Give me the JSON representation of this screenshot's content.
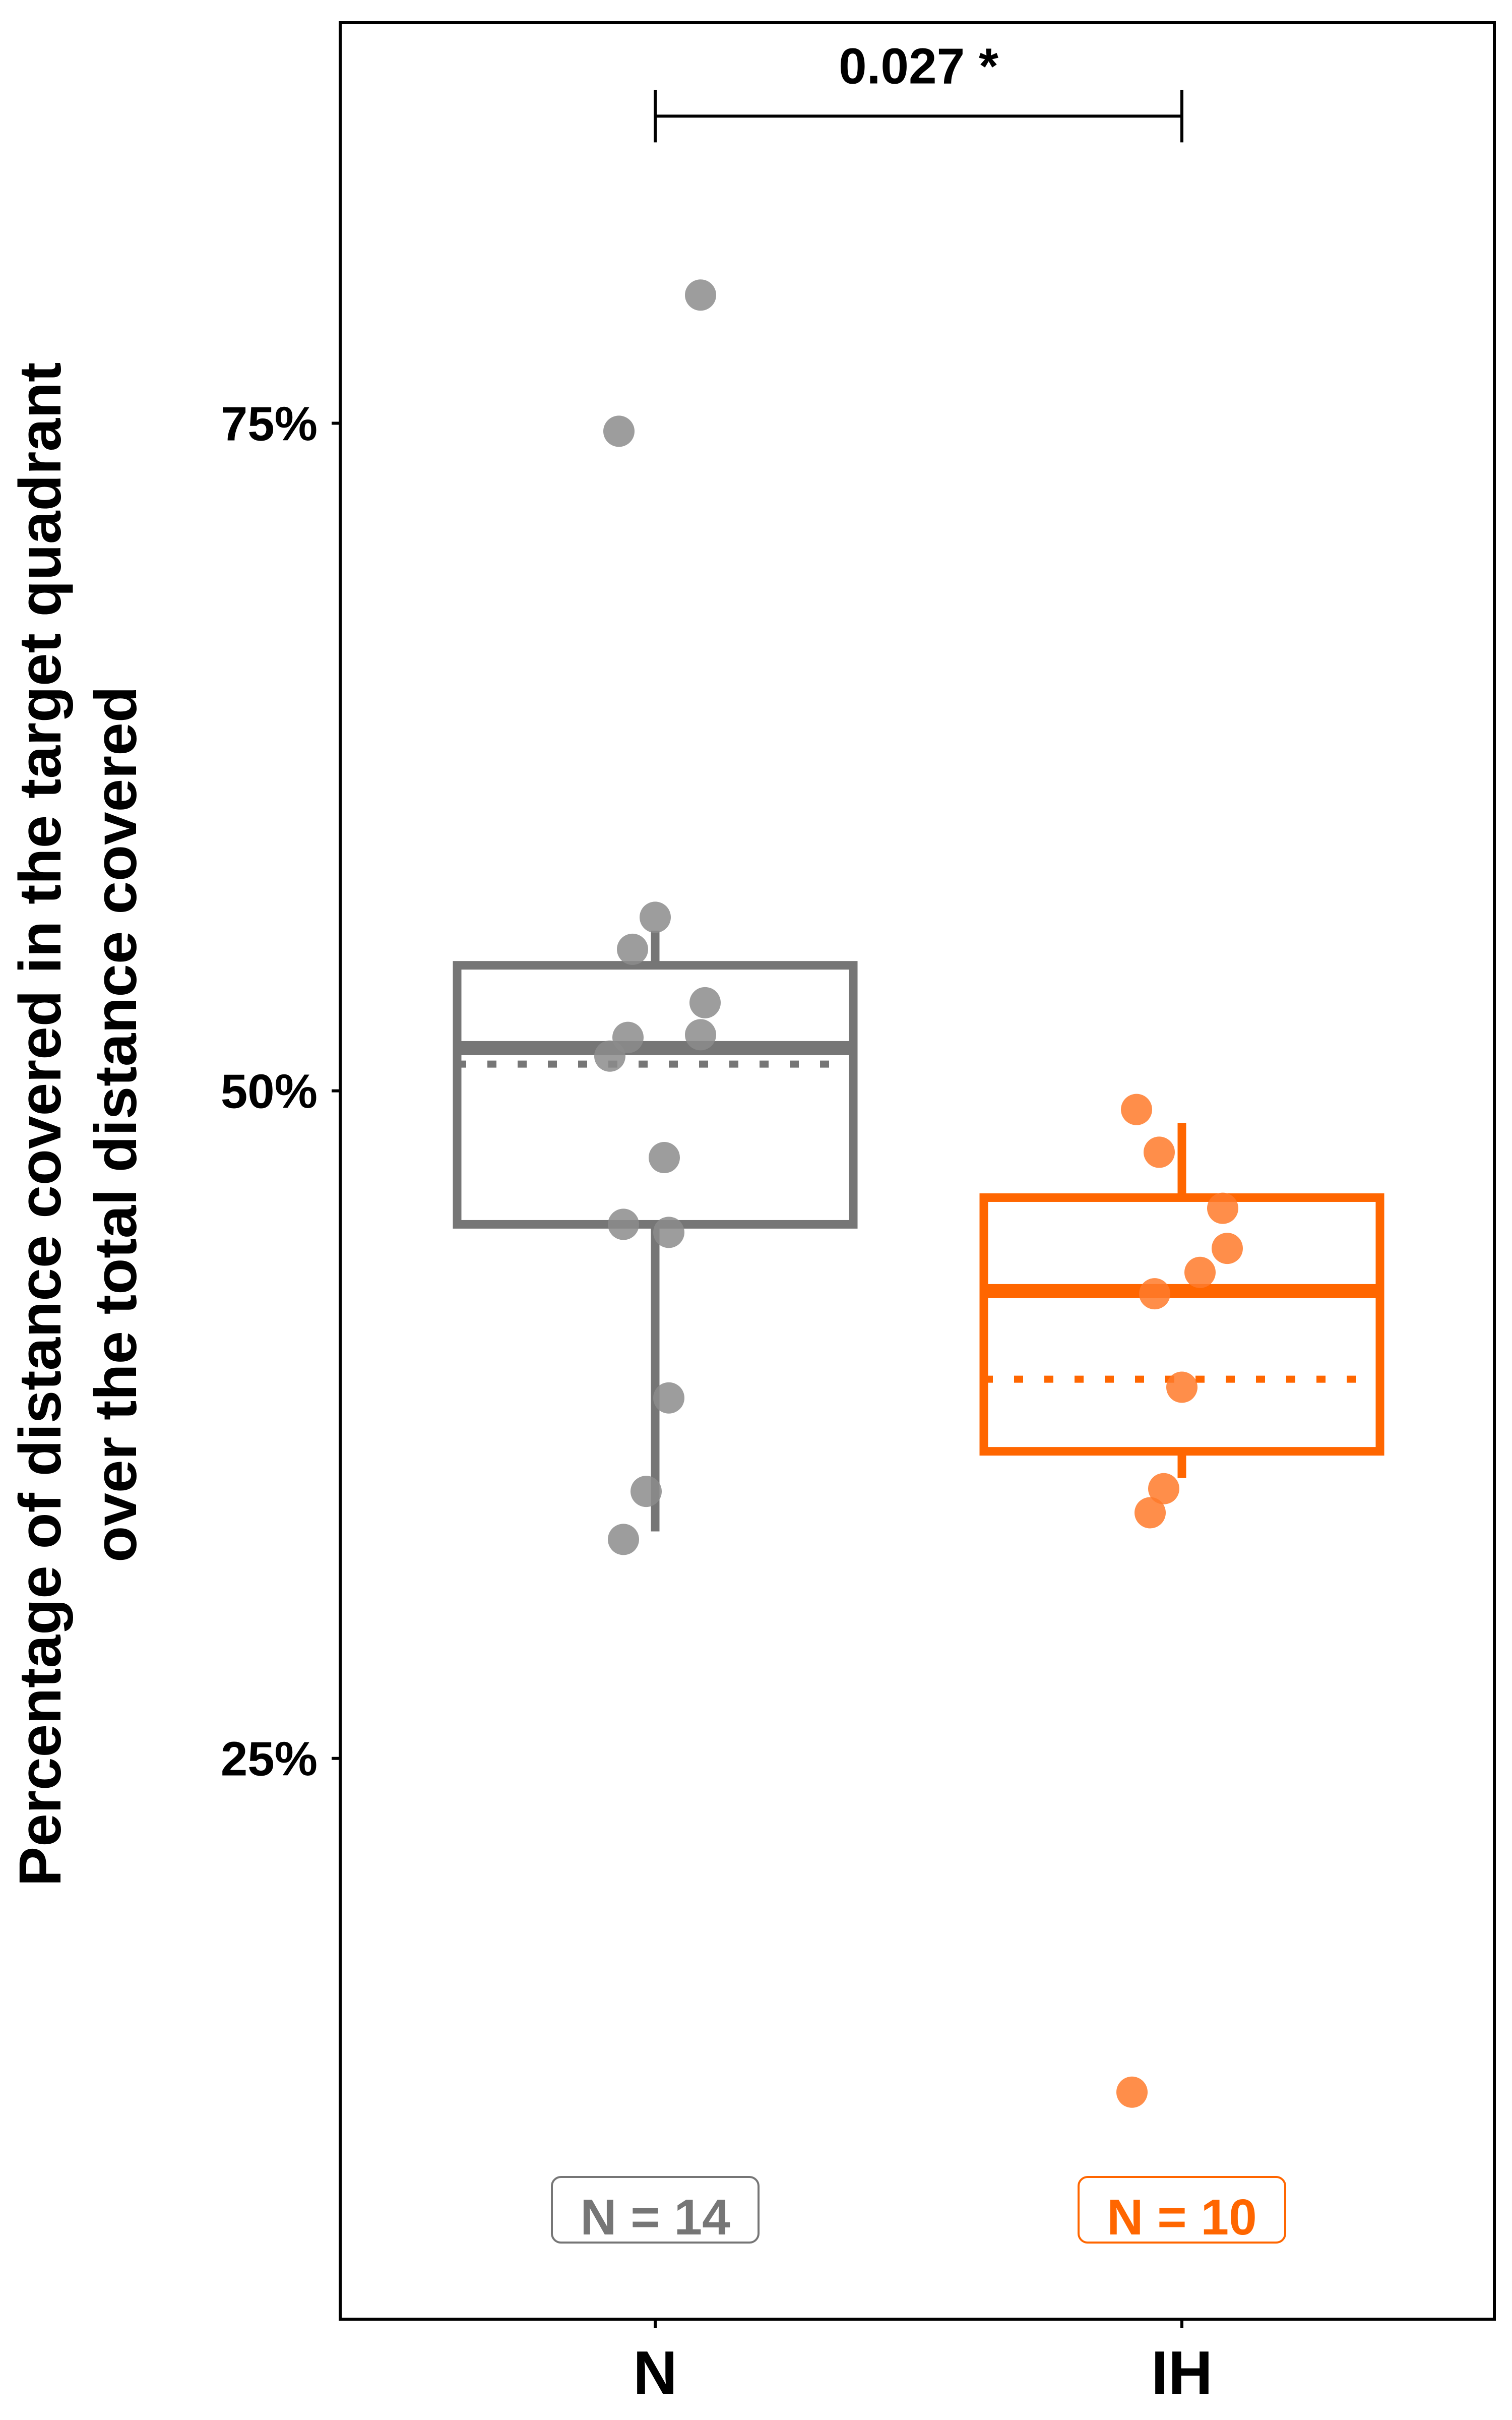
{
  "chart_data": {
    "type": "box",
    "title": "",
    "xlabel": "",
    "ylabel_line1": "Percentage of distance covered in the target quadrant",
    "ylabel_line2": "over the total distance covered",
    "y_ticks": [
      {
        "value": 25,
        "label": "25%"
      },
      {
        "value": 50,
        "label": "50%"
      },
      {
        "value": 75,
        "label": "75%"
      }
    ],
    "ylim": [
      4,
      90
    ],
    "grid": false,
    "categories": [
      "N",
      "IH"
    ],
    "series": [
      {
        "category": "N",
        "color": "#767676",
        "point_color": "#8c8c8c",
        "whisker_low": 33.5,
        "q1": 45.0,
        "median": 51.6,
        "mean": 51.0,
        "q3": 54.7,
        "whisker_high": 56.0,
        "n_label": "N = 14",
        "points": [
          {
            "jitter": 0.1,
            "y": 79.8
          },
          {
            "jitter": -0.08,
            "y": 74.7
          },
          {
            "jitter": 0.0,
            "y": 56.5
          },
          {
            "jitter": -0.05,
            "y": 55.3
          },
          {
            "jitter": 0.11,
            "y": 53.3
          },
          {
            "jitter": -0.06,
            "y": 52.0
          },
          {
            "jitter": 0.1,
            "y": 52.1
          },
          {
            "jitter": -0.1,
            "y": 51.3
          },
          {
            "jitter": 0.02,
            "y": 47.5
          },
          {
            "jitter": -0.07,
            "y": 45.0
          },
          {
            "jitter": 0.03,
            "y": 44.7
          },
          {
            "jitter": 0.03,
            "y": 38.5
          },
          {
            "jitter": -0.02,
            "y": 35.0
          },
          {
            "jitter": -0.07,
            "y": 33.2
          }
        ]
      },
      {
        "category": "IH",
        "color": "#ff6600",
        "point_color": "#ff7a2a",
        "whisker_low": 35.5,
        "q1": 36.5,
        "median": 42.5,
        "mean": 39.2,
        "q3": 46.0,
        "whisker_high": 48.8,
        "n_label": "N = 10",
        "points": [
          {
            "jitter": -0.1,
            "y": 49.3
          },
          {
            "jitter": -0.05,
            "y": 47.7
          },
          {
            "jitter": 0.09,
            "y": 45.6
          },
          {
            "jitter": 0.1,
            "y": 44.1
          },
          {
            "jitter": 0.04,
            "y": 43.2
          },
          {
            "jitter": -0.06,
            "y": 42.4
          },
          {
            "jitter": 0.0,
            "y": 38.9
          },
          {
            "jitter": -0.04,
            "y": 35.1
          },
          {
            "jitter": -0.07,
            "y": 34.2
          },
          {
            "jitter": -0.11,
            "y": 12.5
          }
        ]
      }
    ],
    "annotations": [
      {
        "type": "bracket",
        "from": "N",
        "to": "IH",
        "y": 86.5,
        "label": "0.027 *"
      }
    ]
  }
}
